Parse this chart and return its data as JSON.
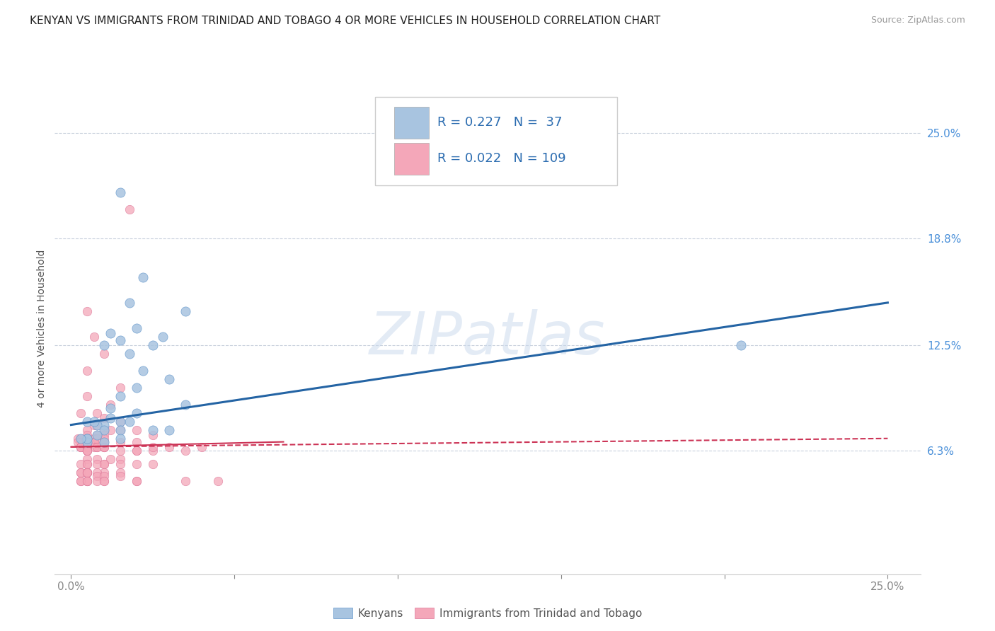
{
  "title": "KENYAN VS IMMIGRANTS FROM TRINIDAD AND TOBAGO 4 OR MORE VEHICLES IN HOUSEHOLD CORRELATION CHART",
  "source": "Source: ZipAtlas.com",
  "ylabel": "4 or more Vehicles in Household",
  "xlim": [
    -0.5,
    26.0
  ],
  "ylim": [
    -1.0,
    28.0
  ],
  "xtick_values": [
    0.0,
    5.0,
    10.0,
    15.0,
    20.0,
    25.0
  ],
  "xticklabels_show": [
    "0.0%",
    "25.0%"
  ],
  "ytick_values": [
    6.3,
    12.5,
    18.8,
    25.0
  ],
  "ytick_labels": [
    "6.3%",
    "12.5%",
    "18.8%",
    "25.0%"
  ],
  "hgrid_values": [
    6.3,
    12.5,
    18.8,
    25.0
  ],
  "kenyan_color": "#a8c4e0",
  "kenyan_edge_color": "#6699cc",
  "trinidad_color": "#f4a7b9",
  "trinidad_edge_color": "#dd7799",
  "kenyan_line_color": "#2464a4",
  "trinidad_line_color": "#cc3355",
  "legend_kenyan_R": "0.227",
  "legend_kenyan_N": "37",
  "legend_trinidad_R": "0.022",
  "legend_trinidad_N": "109",
  "legend_label_kenyan": "Kenyans",
  "legend_label_trinidad": "Immigrants from Trinidad and Tobago",
  "title_fontsize": 11,
  "label_fontsize": 10,
  "tick_fontsize": 11,
  "watermark_text": "ZIPatlas",
  "background_color": "#ffffff",
  "kenyan_scatter_x": [
    1.5,
    2.2,
    1.8,
    3.5,
    2.0,
    1.2,
    2.8,
    1.5,
    2.5,
    1.0,
    1.8,
    2.2,
    3.0,
    2.0,
    1.5,
    3.5,
    1.2,
    2.0,
    1.8,
    1.5,
    1.0,
    0.8,
    2.5,
    1.5,
    1.0,
    0.5,
    0.7,
    1.2,
    0.5,
    0.8,
    0.5,
    1.0,
    0.5,
    0.3,
    20.5,
    3.0,
    1.5
  ],
  "kenyan_scatter_y": [
    21.5,
    16.5,
    15.0,
    14.5,
    13.5,
    13.2,
    13.0,
    12.8,
    12.5,
    12.5,
    12.0,
    11.0,
    10.5,
    10.0,
    9.5,
    9.0,
    8.8,
    8.5,
    8.0,
    8.0,
    7.8,
    7.8,
    7.5,
    7.5,
    7.5,
    8.0,
    8.0,
    8.2,
    7.0,
    7.2,
    6.8,
    6.8,
    7.0,
    7.0,
    12.5,
    7.5,
    7.0
  ],
  "trinidad_scatter_x": [
    1.8,
    0.5,
    0.7,
    1.0,
    0.5,
    1.5,
    0.5,
    1.2,
    0.8,
    0.3,
    1.0,
    1.5,
    0.7,
    0.8,
    1.2,
    1.0,
    2.0,
    0.5,
    1.5,
    2.5,
    0.8,
    1.0,
    0.5,
    0.3,
    0.2,
    0.5,
    0.7,
    0.5,
    0.3,
    0.3,
    0.5,
    0.5,
    0.8,
    0.5,
    1.0,
    0.5,
    1.5,
    2.0,
    0.7,
    0.3,
    0.2,
    0.5,
    1.0,
    0.5,
    0.3,
    0.5,
    0.8,
    0.5,
    1.0,
    0.3,
    0.5,
    0.7,
    0.5,
    0.3,
    0.5,
    0.8,
    1.0,
    0.5,
    0.5,
    0.5,
    2.0,
    2.5,
    3.5,
    1.5,
    2.0,
    1.0,
    2.5,
    3.0,
    4.0,
    0.5,
    0.8,
    1.2,
    1.5,
    0.5,
    1.0,
    0.8,
    0.3,
    0.5,
    1.0,
    1.5,
    2.0,
    2.5,
    0.5,
    0.3,
    0.5,
    1.0,
    0.5,
    0.3,
    0.5,
    0.5,
    1.5,
    0.8,
    0.5,
    0.8,
    1.0,
    1.5,
    0.3,
    0.5,
    0.8,
    0.5,
    1.0,
    2.0,
    3.5,
    4.5,
    0.5,
    0.3,
    0.5,
    1.0,
    2.0
  ],
  "trinidad_scatter_y": [
    20.5,
    14.5,
    13.0,
    12.0,
    11.0,
    10.0,
    9.5,
    9.0,
    8.5,
    8.5,
    8.2,
    8.0,
    7.8,
    7.8,
    7.5,
    7.5,
    7.5,
    7.5,
    7.5,
    7.2,
    7.2,
    7.2,
    7.2,
    7.0,
    7.0,
    7.0,
    7.0,
    7.0,
    7.0,
    7.0,
    7.0,
    7.0,
    7.0,
    7.0,
    7.0,
    6.8,
    6.8,
    6.8,
    6.8,
    6.8,
    6.8,
    6.8,
    6.8,
    6.5,
    6.5,
    6.5,
    6.5,
    6.5,
    6.5,
    6.5,
    6.5,
    6.5,
    6.5,
    6.5,
    6.5,
    6.5,
    6.5,
    6.3,
    6.3,
    6.3,
    6.3,
    6.3,
    6.3,
    6.3,
    6.3,
    6.5,
    6.5,
    6.5,
    6.5,
    5.8,
    5.8,
    5.8,
    5.8,
    5.5,
    5.5,
    5.5,
    5.5,
    5.5,
    5.5,
    5.5,
    5.5,
    5.5,
    5.0,
    5.0,
    5.0,
    5.0,
    5.0,
    5.0,
    5.0,
    5.0,
    5.0,
    5.0,
    5.0,
    4.8,
    4.8,
    4.8,
    4.5,
    4.5,
    4.5,
    4.5,
    4.5,
    4.5,
    4.5,
    4.5,
    4.5,
    4.5,
    4.5,
    4.5,
    4.5
  ],
  "kenyan_trend_x0": 0.0,
  "kenyan_trend_y0": 7.8,
  "kenyan_trend_x1": 25.0,
  "kenyan_trend_y1": 15.0,
  "trinidad_trend_x0": 0.0,
  "trinidad_trend_y0": 6.5,
  "trinidad_trend_x1": 6.5,
  "trinidad_trend_y1": 6.8,
  "trinidad_dashed_x0": 0.0,
  "trinidad_dashed_y0": 6.5,
  "trinidad_dashed_x1": 25.0,
  "trinidad_dashed_y1": 7.0
}
